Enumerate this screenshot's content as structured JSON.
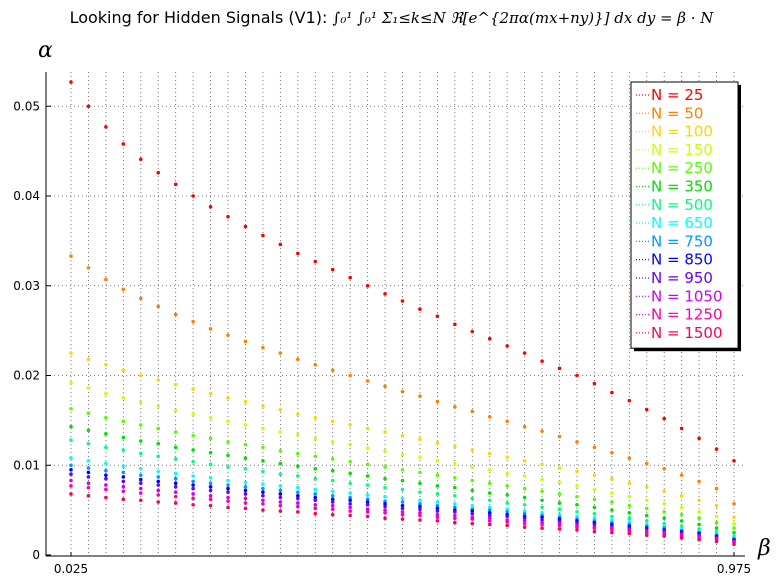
{
  "chart_data": {
    "type": "scatter",
    "title": "Looking for Hidden Signals (V1):",
    "title_formula": "∫₀¹ ∫₀¹ Σ₁≤k≤N ℜ[e^{2πα(mx+ny)}] dx dy = β · N",
    "xlabel": "β",
    "ylabel": "α",
    "xlim": [
      0.025,
      0.975
    ],
    "ylim": [
      0,
      0.054
    ],
    "x_tick_labels": [
      "0.025",
      "0.975"
    ],
    "y_ticks": [
      0,
      0.01,
      0.02,
      0.03,
      0.04,
      0.05
    ],
    "y_tick_labels": [
      "0",
      "0.01",
      "0.02",
      "0.03",
      "0.04",
      "0.05"
    ],
    "grid": "dotted",
    "legend_position": "top-right",
    "x": [
      0.025,
      0.05,
      0.075,
      0.1,
      0.125,
      0.15,
      0.175,
      0.2,
      0.225,
      0.25,
      0.275,
      0.3,
      0.325,
      0.35,
      0.375,
      0.4,
      0.425,
      0.45,
      0.475,
      0.5,
      0.525,
      0.55,
      0.575,
      0.6,
      0.625,
      0.65,
      0.675,
      0.7,
      0.725,
      0.75,
      0.775,
      0.8,
      0.825,
      0.85,
      0.875,
      0.9,
      0.925,
      0.95,
      0.975
    ],
    "series": [
      {
        "name": "N = 25",
        "color": "#ff0000",
        "values": [
          0.0527,
          0.05,
          0.0477,
          0.0458,
          0.0441,
          0.0426,
          0.0413,
          0.04,
          0.0388,
          0.0377,
          0.0366,
          0.0356,
          0.0346,
          0.0336,
          0.0327,
          0.0318,
          0.0309,
          0.03,
          0.0291,
          0.0283,
          0.0274,
          0.0266,
          0.0257,
          0.0249,
          0.0241,
          0.0233,
          0.0225,
          0.0216,
          0.0208,
          0.02,
          0.0191,
          0.0181,
          0.0172,
          0.0162,
          0.0152,
          0.0141,
          0.013,
          0.0118,
          0.0105
        ]
      },
      {
        "name": "N = 50",
        "color": "#ff7f00",
        "values": [
          0.0333,
          0.032,
          0.0307,
          0.0296,
          0.0286,
          0.0277,
          0.0268,
          0.026,
          0.0252,
          0.0245,
          0.0238,
          0.0231,
          0.0225,
          0.0218,
          0.0212,
          0.0206,
          0.02,
          0.0194,
          0.0188,
          0.0182,
          0.0177,
          0.0171,
          0.0165,
          0.016,
          0.0154,
          0.0149,
          0.0143,
          0.0138,
          0.0132,
          0.0126,
          0.012,
          0.0114,
          0.0108,
          0.0102,
          0.0096,
          0.0089,
          0.0082,
          0.0074,
          0.0057
        ]
      },
      {
        "name": "N = 100",
        "color": "#ffd700",
        "values": [
          0.0225,
          0.0218,
          0.0212,
          0.0206,
          0.02,
          0.0195,
          0.019,
          0.0185,
          0.018,
          0.0175,
          0.0171,
          0.0166,
          0.0162,
          0.0157,
          0.0153,
          0.0149,
          0.0145,
          0.0141,
          0.0137,
          0.0133,
          0.0129,
          0.0125,
          0.0121,
          0.0117,
          0.0113,
          0.0109,
          0.0105,
          0.0101,
          0.0097,
          0.0093,
          0.0089,
          0.0085,
          0.008,
          0.0076,
          0.0071,
          0.0066,
          0.0061,
          0.0055,
          0.0042
        ]
      },
      {
        "name": "N = 150",
        "color": "#ccff00",
        "values": [
          0.0192,
          0.0186,
          0.018,
          0.0175,
          0.017,
          0.0166,
          0.0161,
          0.0157,
          0.0153,
          0.0149,
          0.0145,
          0.0141,
          0.0137,
          0.0134,
          0.013,
          0.0126,
          0.0123,
          0.0119,
          0.0116,
          0.0112,
          0.0109,
          0.0105,
          0.0102,
          0.0098,
          0.0095,
          0.0091,
          0.0088,
          0.0084,
          0.0081,
          0.0077,
          0.0073,
          0.0069,
          0.0065,
          0.0061,
          0.0057,
          0.0053,
          0.0048,
          0.0043,
          0.0035
        ]
      },
      {
        "name": "N = 250",
        "color": "#55ff00",
        "values": [
          0.0163,
          0.0158,
          0.0153,
          0.0149,
          0.0145,
          0.0141,
          0.0137,
          0.0133,
          0.013,
          0.0126,
          0.0123,
          0.012,
          0.0116,
          0.0113,
          0.011,
          0.0107,
          0.0104,
          0.0101,
          0.0098,
          0.0095,
          0.0092,
          0.0089,
          0.0086,
          0.0083,
          0.008,
          0.0077,
          0.0074,
          0.0071,
          0.0068,
          0.0065,
          0.0062,
          0.0059,
          0.0055,
          0.0052,
          0.0048,
          0.0045,
          0.0041,
          0.0036,
          0.003
        ]
      },
      {
        "name": "N = 350",
        "color": "#00e000",
        "values": [
          0.0143,
          0.0139,
          0.0135,
          0.0131,
          0.0127,
          0.0124,
          0.012,
          0.0117,
          0.0114,
          0.0111,
          0.0108,
          0.0105,
          0.0102,
          0.0099,
          0.0096,
          0.0094,
          0.0091,
          0.0088,
          0.0085,
          0.0083,
          0.008,
          0.0077,
          0.0075,
          0.0072,
          0.0069,
          0.0067,
          0.0064,
          0.0061,
          0.0058,
          0.0056,
          0.0053,
          0.005,
          0.0047,
          0.0044,
          0.0041,
          0.0038,
          0.0034,
          0.003,
          0.0025
        ]
      },
      {
        "name": "N = 500",
        "color": "#00ff80",
        "values": [
          0.0128,
          0.0124,
          0.012,
          0.0117,
          0.0113,
          0.011,
          0.0107,
          0.0104,
          0.0101,
          0.0098,
          0.0096,
          0.0093,
          0.009,
          0.0088,
          0.0085,
          0.0083,
          0.008,
          0.0078,
          0.0075,
          0.0073,
          0.007,
          0.0068,
          0.0066,
          0.0063,
          0.0061,
          0.0058,
          0.0056,
          0.0053,
          0.0051,
          0.0048,
          0.0046,
          0.0043,
          0.0041,
          0.0038,
          0.0035,
          0.0032,
          0.0029,
          0.0026,
          0.0021
        ]
      },
      {
        "name": "N = 650",
        "color": "#00ffff",
        "values": [
          0.0108,
          0.0105,
          0.0102,
          0.0099,
          0.0096,
          0.0093,
          0.0091,
          0.0088,
          0.0086,
          0.0083,
          0.0081,
          0.0079,
          0.0077,
          0.0075,
          0.0073,
          0.0071,
          0.0069,
          0.0067,
          0.0065,
          0.0063,
          0.0061,
          0.0059,
          0.0057,
          0.0055,
          0.0053,
          0.0051,
          0.0049,
          0.0047,
          0.0045,
          0.0043,
          0.0041,
          0.0039,
          0.0037,
          0.0034,
          0.0032,
          0.0029,
          0.0026,
          0.0023,
          0.0019
        ]
      },
      {
        "name": "N = 750",
        "color": "#0099ff",
        "values": [
          0.01,
          0.0097,
          0.0094,
          0.0092,
          0.0089,
          0.0087,
          0.0085,
          0.0082,
          0.008,
          0.0078,
          0.0076,
          0.0074,
          0.0072,
          0.007,
          0.0068,
          0.0066,
          0.0064,
          0.0062,
          0.006,
          0.0059,
          0.0057,
          0.0055,
          0.0053,
          0.0051,
          0.005,
          0.0048,
          0.0046,
          0.0044,
          0.0042,
          0.004,
          0.0038,
          0.0036,
          0.0034,
          0.0032,
          0.003,
          0.0027,
          0.0025,
          0.0022,
          0.0018
        ]
      },
      {
        "name": "N = 850",
        "color": "#0000ff",
        "values": [
          0.0095,
          0.0092,
          0.0089,
          0.0087,
          0.0084,
          0.0082,
          0.008,
          0.0078,
          0.0076,
          0.0074,
          0.0072,
          0.007,
          0.0068,
          0.0066,
          0.0064,
          0.0062,
          0.0061,
          0.0059,
          0.0057,
          0.0055,
          0.0054,
          0.0052,
          0.005,
          0.0049,
          0.0047,
          0.0045,
          0.0043,
          0.0042,
          0.004,
          0.0038,
          0.0036,
          0.0034,
          0.0032,
          0.003,
          0.0028,
          0.0026,
          0.0024,
          0.0021,
          0.0017
        ]
      },
      {
        "name": "N = 950",
        "color": "#6600ff",
        "values": [
          0.009,
          0.0087,
          0.0085,
          0.0082,
          0.008,
          0.0078,
          0.0076,
          0.0074,
          0.0072,
          0.007,
          0.0068,
          0.0066,
          0.0064,
          0.0063,
          0.0061,
          0.0059,
          0.0057,
          0.0056,
          0.0054,
          0.0052,
          0.0051,
          0.0049,
          0.0048,
          0.0046,
          0.0044,
          0.0043,
          0.0041,
          0.0039,
          0.0038,
          0.0036,
          0.0034,
          0.0032,
          0.003,
          0.0029,
          0.0027,
          0.0025,
          0.0022,
          0.002,
          0.0016
        ]
      },
      {
        "name": "N = 1050",
        "color": "#cc00ff",
        "values": [
          0.0083,
          0.008,
          0.0078,
          0.0076,
          0.0074,
          0.0072,
          0.007,
          0.0068,
          0.0066,
          0.0064,
          0.0063,
          0.0061,
          0.0059,
          0.0058,
          0.0056,
          0.0055,
          0.0053,
          0.0051,
          0.005,
          0.0048,
          0.0047,
          0.0045,
          0.0044,
          0.0042,
          0.0041,
          0.0039,
          0.0038,
          0.0036,
          0.0035,
          0.0033,
          0.0031,
          0.003,
          0.0028,
          0.0026,
          0.0025,
          0.0023,
          0.0021,
          0.0018,
          0.0015
        ]
      },
      {
        "name": "N = 1250",
        "color": "#ff00aa",
        "values": [
          0.0077,
          0.0075,
          0.0073,
          0.0071,
          0.0069,
          0.0067,
          0.0065,
          0.0063,
          0.0062,
          0.006,
          0.0058,
          0.0057,
          0.0055,
          0.0054,
          0.0052,
          0.0051,
          0.0049,
          0.0048,
          0.0047,
          0.0045,
          0.0044,
          0.0042,
          0.0041,
          0.004,
          0.0038,
          0.0037,
          0.0035,
          0.0034,
          0.0033,
          0.0031,
          0.003,
          0.0028,
          0.0026,
          0.0025,
          0.0023,
          0.0021,
          0.0019,
          0.0017,
          0.0014
        ]
      },
      {
        "name": "N = 1500",
        "color": "#ff0055",
        "values": [
          0.0068,
          0.0066,
          0.0064,
          0.0062,
          0.0061,
          0.0059,
          0.0058,
          0.0056,
          0.0055,
          0.0053,
          0.0052,
          0.005,
          0.0049,
          0.0048,
          0.0046,
          0.0045,
          0.0044,
          0.0043,
          0.0041,
          0.004,
          0.0039,
          0.0038,
          0.0036,
          0.0035,
          0.0034,
          0.0033,
          0.0031,
          0.003,
          0.0029,
          0.0028,
          0.0026,
          0.0025,
          0.0024,
          0.0022,
          0.0021,
          0.0019,
          0.0017,
          0.0015,
          0.0012
        ]
      }
    ]
  }
}
